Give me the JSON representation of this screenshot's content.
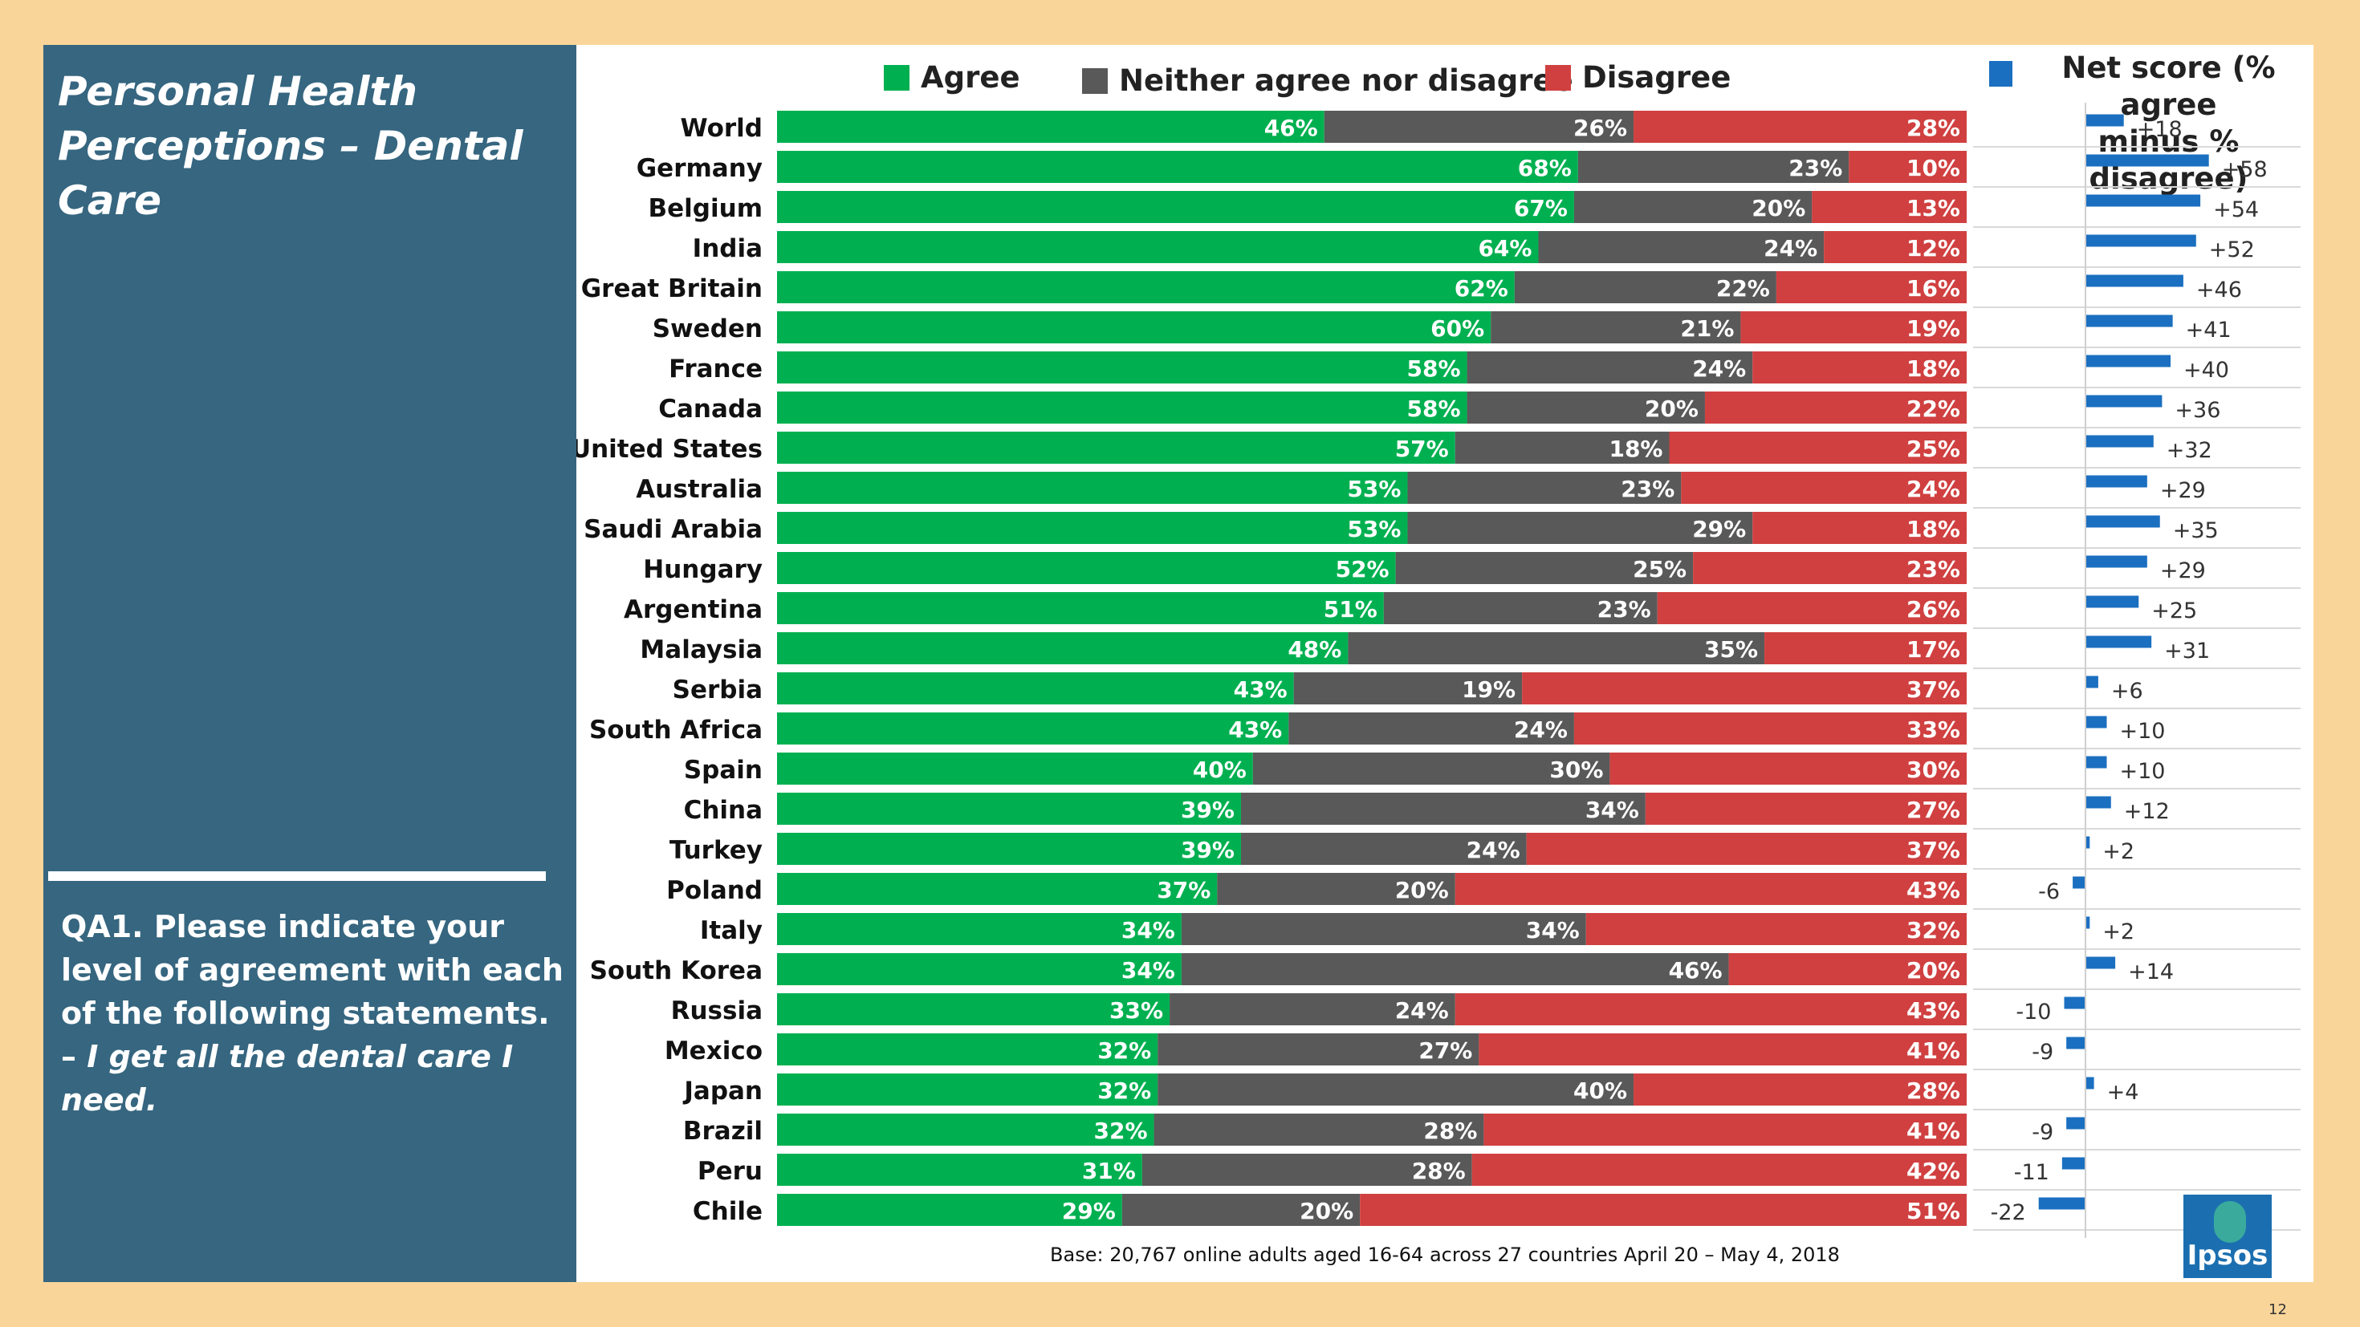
{
  "slide": {
    "title_line1": "Personal Health",
    "title_line2": "Perceptions – Dental Care",
    "question_plain": "QA1. Please indicate your level of agreement with each of the following statements. –",
    "question_italic": "I get all the dental care I need.",
    "footnote": "Base: 20,767 online adults aged 16-64 across 27 countries  April 20 – May 4, 2018",
    "logo_text": "Ipsos",
    "slide_number": "12"
  },
  "legend": {
    "agree": "Agree",
    "neither": "Neither agree nor disagree",
    "disagree": "Disagree",
    "net_line1": "Net score (% agree",
    "net_line2": "minus % disagree)"
  },
  "colors": {
    "agree": "#00b050",
    "neither": "#595959",
    "disagree": "#d04040",
    "net": "#1b6fc0",
    "panel": "#366680",
    "background": "#fad59a"
  },
  "chart_data": {
    "type": "bar",
    "stacked": true,
    "orientation": "horizontal",
    "categories": [
      "World",
      "Germany",
      "Belgium",
      "India",
      "Great Britain",
      "Sweden",
      "France",
      "Canada",
      "United States",
      "Australia",
      "Saudi Arabia",
      "Hungary",
      "Argentina",
      "Malaysia",
      "Serbia",
      "South Africa",
      "Spain",
      "China",
      "Turkey",
      "Poland",
      "Italy",
      "South Korea",
      "Russia",
      "Mexico",
      "Japan",
      "Brazil",
      "Peru",
      "Chile"
    ],
    "series": [
      {
        "name": "Agree",
        "values": [
          46,
          68,
          67,
          64,
          62,
          60,
          58,
          58,
          57,
          53,
          53,
          52,
          51,
          48,
          43,
          43,
          40,
          39,
          39,
          37,
          34,
          34,
          33,
          32,
          32,
          32,
          31,
          29
        ]
      },
      {
        "name": "Neither agree nor disagree",
        "values": [
          26,
          23,
          20,
          24,
          22,
          21,
          24,
          20,
          18,
          23,
          29,
          25,
          23,
          35,
          19,
          24,
          30,
          34,
          24,
          20,
          34,
          46,
          24,
          27,
          40,
          28,
          28,
          20
        ]
      },
      {
        "name": "Disagree",
        "values": [
          28,
          10,
          13,
          12,
          16,
          19,
          18,
          22,
          25,
          24,
          18,
          23,
          26,
          17,
          37,
          33,
          30,
          27,
          37,
          43,
          32,
          20,
          43,
          41,
          28,
          41,
          42,
          51
        ]
      }
    ],
    "net_score": {
      "name": "Net score (% agree minus % disagree)",
      "values": [
        18,
        58,
        54,
        52,
        46,
        41,
        40,
        36,
        32,
        29,
        35,
        29,
        25,
        31,
        6,
        10,
        10,
        12,
        2,
        -6,
        2,
        14,
        -10,
        -9,
        4,
        -9,
        -11,
        -22
      ]
    }
  }
}
